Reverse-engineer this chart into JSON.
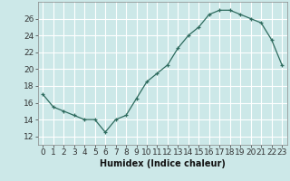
{
  "x": [
    0,
    1,
    2,
    3,
    4,
    5,
    6,
    7,
    8,
    9,
    10,
    11,
    12,
    13,
    14,
    15,
    16,
    17,
    18,
    19,
    20,
    21,
    22,
    23
  ],
  "y": [
    17.0,
    15.5,
    15.0,
    14.5,
    14.0,
    14.0,
    12.5,
    14.0,
    14.5,
    16.5,
    18.5,
    19.5,
    20.5,
    22.5,
    24.0,
    25.0,
    26.5,
    27.0,
    27.0,
    26.5,
    26.0,
    25.5,
    23.5,
    20.5
  ],
  "line_color": "#2e6b5e",
  "marker": "+",
  "background_color": "#cce8e8",
  "grid_color": "#ffffff",
  "xlabel": "Humidex (Indice chaleur)",
  "ylabel": "",
  "xlim": [
    -0.5,
    23.5
  ],
  "ylim": [
    11,
    28
  ],
  "yticks": [
    12,
    14,
    16,
    18,
    20,
    22,
    24,
    26
  ],
  "xtick_labels": [
    "0",
    "1",
    "2",
    "3",
    "4",
    "5",
    "6",
    "7",
    "8",
    "9",
    "10",
    "11",
    "12",
    "13",
    "14",
    "15",
    "16",
    "17",
    "18",
    "19",
    "20",
    "21",
    "22",
    "23"
  ],
  "xlabel_fontsize": 7,
  "tick_fontsize": 6.5
}
